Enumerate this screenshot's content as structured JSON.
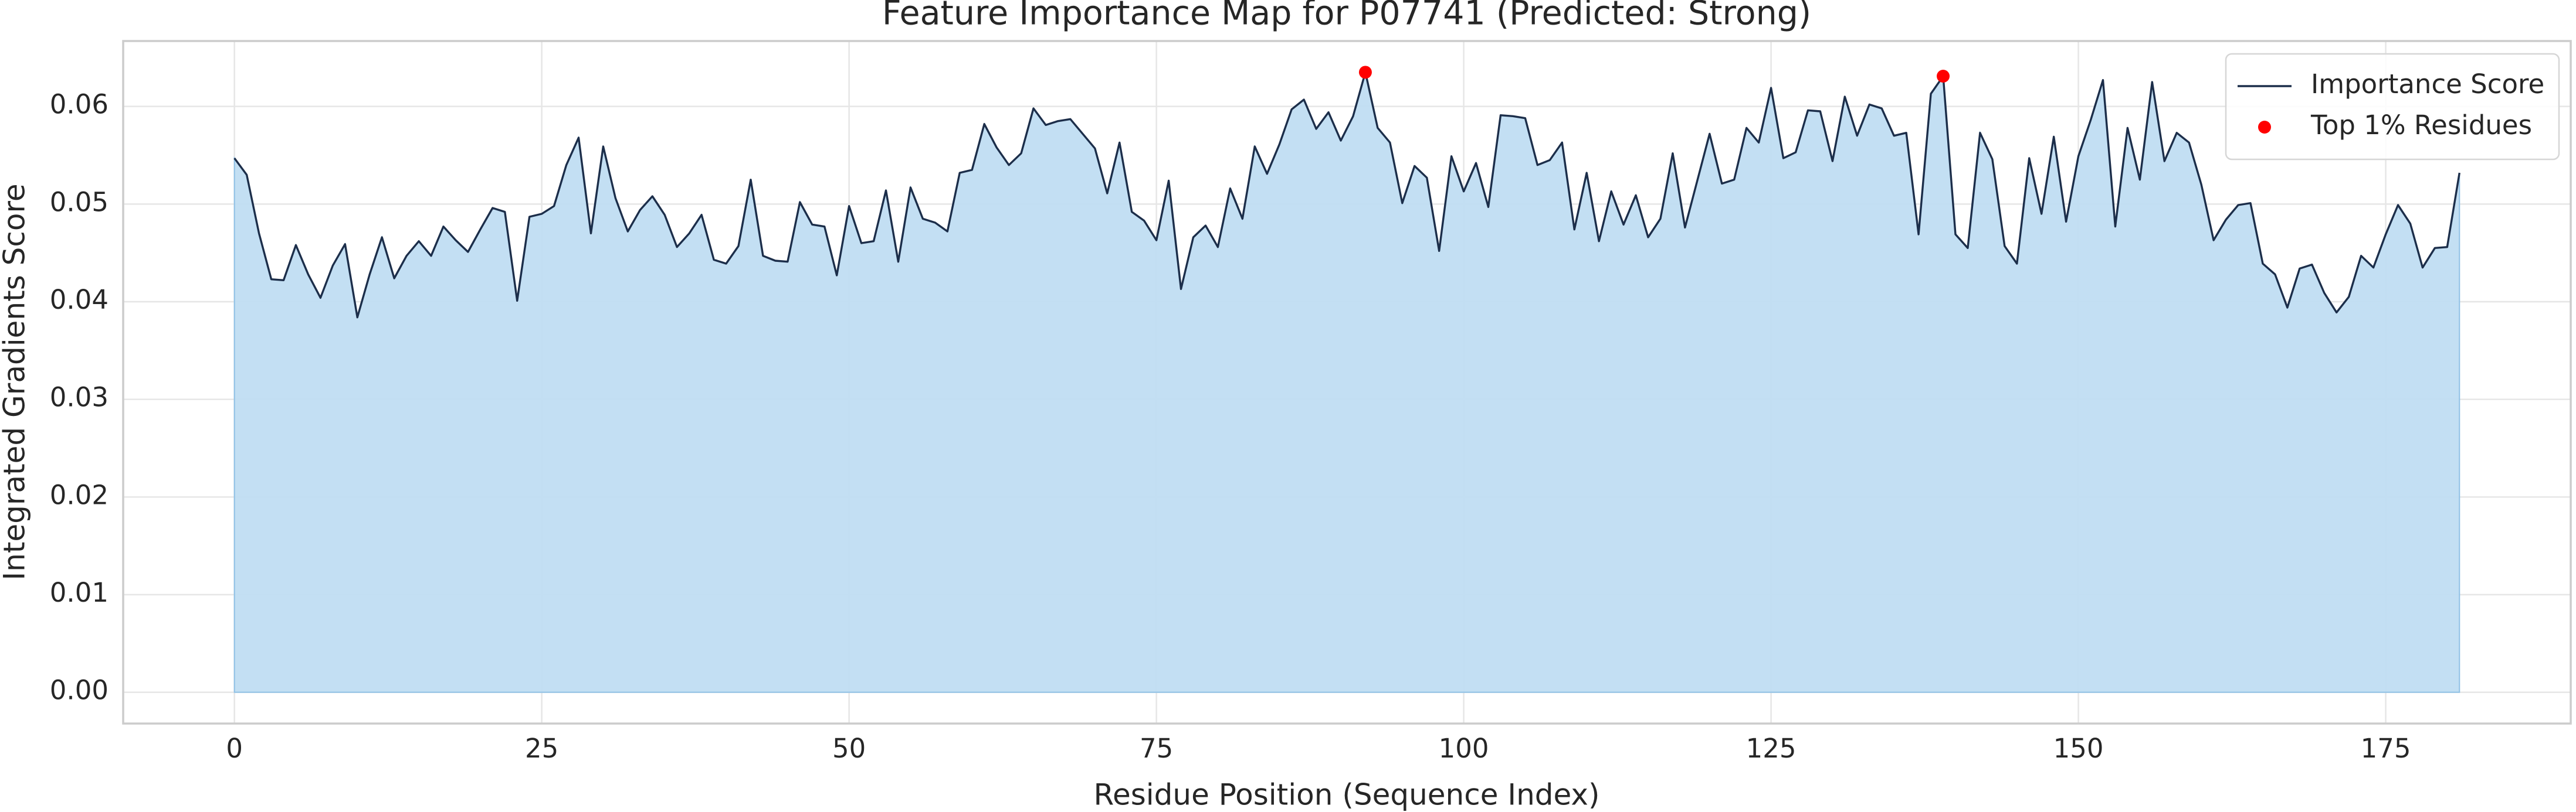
{
  "chart_data": {
    "type": "line",
    "title": "Feature Importance Map for P07741 (Predicted: Strong)",
    "x_label": "Residue Position (Sequence Index)",
    "y_label": "Integrated Gradients Score",
    "x": [
      0,
      1,
      2,
      3,
      4,
      5,
      6,
      7,
      8,
      9,
      10,
      11,
      12,
      13,
      14,
      15,
      16,
      17,
      18,
      19,
      20,
      21,
      22,
      23,
      24,
      25,
      26,
      27,
      28,
      29,
      30,
      31,
      32,
      33,
      34,
      35,
      36,
      37,
      38,
      39,
      40,
      41,
      42,
      43,
      44,
      45,
      46,
      47,
      48,
      49,
      50,
      51,
      52,
      53,
      54,
      55,
      56,
      57,
      58,
      59,
      60,
      61,
      62,
      63,
      64,
      65,
      66,
      67,
      68,
      69,
      70,
      71,
      72,
      73,
      74,
      75,
      76,
      77,
      78,
      79,
      80,
      81,
      82,
      83,
      84,
      85,
      86,
      87,
      88,
      89,
      90,
      91,
      92,
      93,
      94,
      95,
      96,
      97,
      98,
      99,
      100,
      101,
      102,
      103,
      104,
      105,
      106,
      107,
      108,
      109,
      110,
      111,
      112,
      113,
      114,
      115,
      116,
      117,
      118,
      119,
      120,
      121,
      122,
      123,
      124,
      125,
      126,
      127,
      128,
      129,
      130,
      131,
      132,
      133,
      134,
      135,
      136,
      137,
      138,
      139,
      140,
      141,
      142,
      143,
      144,
      145,
      146,
      147,
      148,
      149,
      150,
      151,
      152,
      153,
      154,
      155,
      156,
      157,
      158,
      159,
      160,
      161,
      162,
      163,
      164,
      165,
      166,
      167,
      168,
      169,
      170,
      171,
      172,
      173,
      174,
      175,
      176,
      177,
      178,
      179,
      180,
      181
    ],
    "series": [
      {
        "name": "Importance Score",
        "type": "line",
        "fill": true,
        "color": "#1c2e4a",
        "fill_color": "#c0ddf2",
        "values": [
          0.0547,
          0.053,
          0.047,
          0.0423,
          0.0422,
          0.0458,
          0.0428,
          0.0404,
          0.0437,
          0.0459,
          0.0384,
          0.0428,
          0.0466,
          0.0424,
          0.0447,
          0.0462,
          0.0447,
          0.0477,
          0.0463,
          0.0451,
          0.0474,
          0.0496,
          0.0492,
          0.0401,
          0.0487,
          0.049,
          0.0498,
          0.054,
          0.0568,
          0.047,
          0.0559,
          0.0506,
          0.0472,
          0.0494,
          0.0508,
          0.0489,
          0.0456,
          0.047,
          0.0489,
          0.0443,
          0.0439,
          0.0457,
          0.0525,
          0.0447,
          0.0442,
          0.0441,
          0.0502,
          0.0479,
          0.0477,
          0.0427,
          0.0498,
          0.046,
          0.0462,
          0.0514,
          0.0441,
          0.0517,
          0.0485,
          0.0481,
          0.0472,
          0.0532,
          0.0535,
          0.0582,
          0.0558,
          0.054,
          0.0552,
          0.0598,
          0.0581,
          0.0585,
          0.0587,
          0.0572,
          0.0557,
          0.0511,
          0.0563,
          0.0492,
          0.0483,
          0.0463,
          0.0524,
          0.0413,
          0.0466,
          0.0478,
          0.0456,
          0.0516,
          0.0485,
          0.0559,
          0.0531,
          0.0561,
          0.0597,
          0.0607,
          0.0577,
          0.0594,
          0.0565,
          0.059,
          0.0635,
          0.0578,
          0.0563,
          0.0501,
          0.0539,
          0.0527,
          0.0452,
          0.0549,
          0.0513,
          0.0542,
          0.0497,
          0.0591,
          0.059,
          0.0588,
          0.054,
          0.0545,
          0.0563,
          0.0474,
          0.0532,
          0.0462,
          0.0513,
          0.0479,
          0.0509,
          0.0466,
          0.0485,
          0.0552,
          0.0476,
          0.0524,
          0.0572,
          0.0521,
          0.0525,
          0.0578,
          0.0563,
          0.0619,
          0.0547,
          0.0553,
          0.0596,
          0.0595,
          0.0544,
          0.061,
          0.057,
          0.0602,
          0.0598,
          0.057,
          0.0573,
          0.0469,
          0.0613,
          0.0631,
          0.0469,
          0.0455,
          0.0573,
          0.0546,
          0.0457,
          0.0439,
          0.0547,
          0.049,
          0.0569,
          0.0482,
          0.0549,
          0.0586,
          0.0627,
          0.0477,
          0.0578,
          0.0525,
          0.0625,
          0.0544,
          0.0573,
          0.0563,
          0.052,
          0.0463,
          0.0484,
          0.0499,
          0.0501,
          0.0439,
          0.0428,
          0.0394,
          0.0434,
          0.0438,
          0.0409,
          0.0389,
          0.0405,
          0.0447,
          0.0435,
          0.0469,
          0.0499,
          0.048,
          0.0435,
          0.0455,
          0.0456,
          0.0532
        ]
      },
      {
        "name": "Top 1% Residues",
        "type": "scatter",
        "color": "#ff0000",
        "x": [
          92,
          139
        ],
        "values": [
          0.0635,
          0.0631
        ]
      }
    ],
    "xlim": [
      -9.05,
      190.05
    ],
    "xticks": [
      0,
      25,
      50,
      75,
      100,
      125,
      150,
      175
    ],
    "ylim": [
      -0.0032,
      0.0667
    ],
    "yticks": [
      {
        "value": 0,
        "label": "0.00"
      },
      {
        "value": 0.01,
        "label": "0.01"
      },
      {
        "value": 0.02,
        "label": "0.02"
      },
      {
        "value": 0.03,
        "label": "0.03"
      },
      {
        "value": 0.04,
        "label": "0.04"
      },
      {
        "value": 0.05,
        "label": "0.05"
      },
      {
        "value": 0.06,
        "label": "0.06"
      }
    ],
    "grid": true,
    "legend": "upper right"
  }
}
